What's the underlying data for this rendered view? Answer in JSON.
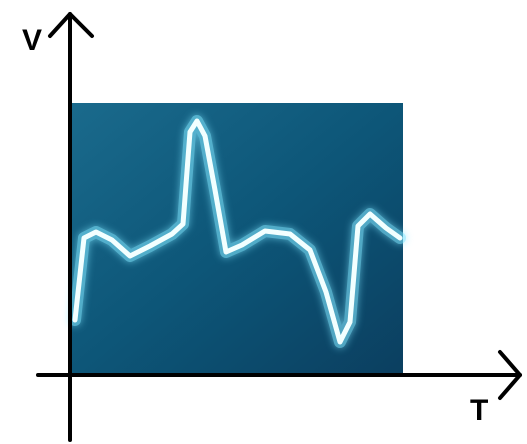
{
  "axes": {
    "y_label": "V",
    "x_label": "T"
  }
}
